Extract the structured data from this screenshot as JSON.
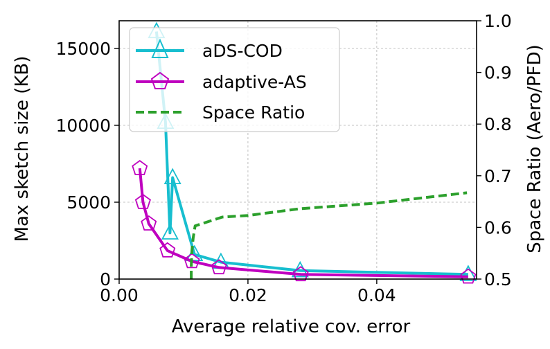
{
  "chart_data": {
    "type": "line",
    "title": "",
    "xlabel": "Average relative cov. error",
    "ylabel": "Max sketch size (KB)",
    "y2label": "Space Ratio (Aero/PFD)",
    "xlim": [
      0.0,
      0.0555
    ],
    "ylim": [
      0,
      16800
    ],
    "y2lim": [
      0.5,
      1.0
    ],
    "xticks": [
      0.0,
      0.02,
      0.04
    ],
    "xtick_labels": [
      "0.00",
      "0.02",
      "0.04"
    ],
    "yticks": [
      0,
      5000,
      10000,
      15000
    ],
    "ytick_labels": [
      "0",
      "5000",
      "10000",
      "15000"
    ],
    "y2ticks": [
      0.5,
      0.6,
      0.7,
      0.8,
      0.9,
      1.0
    ],
    "y2tick_labels": [
      "0.5",
      "0.6",
      "0.7",
      "0.8",
      "0.9",
      "1.0"
    ],
    "grid": true,
    "legend_position": "top-left",
    "series": [
      {
        "name": "aDS-COD",
        "color": "#17BECF",
        "marker": "triangle",
        "axis": "left",
        "x": [
          0.0058,
          0.0072,
          0.0079,
          0.0083,
          0.0117,
          0.0158,
          0.0281,
          0.0542
        ],
        "y": [
          16100,
          10200,
          3000,
          6600,
          1600,
          1100,
          550,
          300
        ]
      },
      {
        "name": "adaptive-AS",
        "color": "#BF00BF",
        "marker": "pentagon",
        "axis": "left",
        "x": [
          0.0032,
          0.0037,
          0.0046,
          0.0075,
          0.0113,
          0.0155,
          0.0282,
          0.0542
        ],
        "y": [
          7200,
          5000,
          3600,
          1850,
          1150,
          750,
          300,
          150
        ]
      },
      {
        "name": "Space Ratio",
        "color": "#2CA02C",
        "marker": "none",
        "linestyle": "dashed",
        "axis": "right",
        "x": [
          0.0112,
          0.0112,
          0.0113,
          0.0115,
          0.0118,
          0.016,
          0.02,
          0.028,
          0.04,
          0.054
        ],
        "y": [
          0.5,
          0.525,
          0.555,
          0.58,
          0.603,
          0.62,
          0.623,
          0.636,
          0.647,
          0.667
        ]
      }
    ]
  }
}
